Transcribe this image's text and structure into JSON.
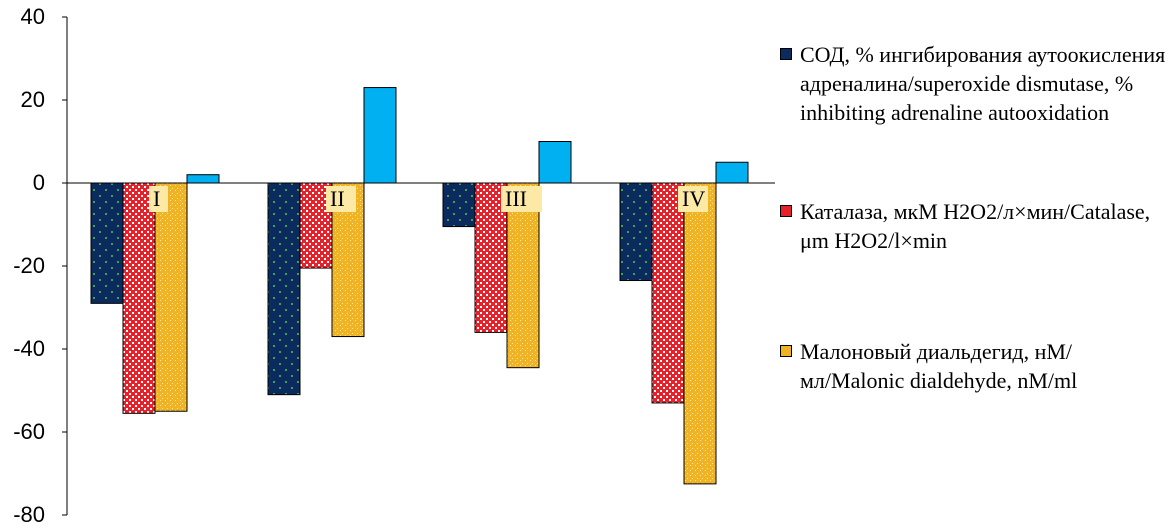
{
  "chart_data": {
    "type": "bar",
    "categories": [
      "I",
      "II",
      "III",
      "IV"
    ],
    "series": [
      {
        "name": "СОД, % ингибирования аутоокисления адреналина/superoxide dismutase, % inhibiting adrenaline autooxidation",
        "values": [
          -29,
          -51,
          -10.5,
          -23.5
        ],
        "color": "#0b2a5e"
      },
      {
        "name": "Каталаза, мкМ Н2О2/л×мин/Catalase, μm Н2О2/l×min",
        "values": [
          -55.5,
          -20.5,
          -36,
          -53
        ],
        "color": "#e8202a"
      },
      {
        "name": "Малоновый диальдегид, нМ/мл/Malonic dialdehyde, nM/ml",
        "values": [
          -55,
          -37,
          -44.5,
          -72.5
        ],
        "color": "#f0b323"
      },
      {
        "name": "",
        "values": [
          2,
          23,
          10,
          5
        ],
        "color": "#00b0f0"
      }
    ],
    "ylim": [
      -80,
      40
    ],
    "yticks": [
      "40",
      "20",
      "0",
      "-20",
      "-40",
      "-60",
      "-80"
    ],
    "grid": false,
    "legend_position": "right",
    "title": "",
    "xlabel": "",
    "ylabel": ""
  }
}
